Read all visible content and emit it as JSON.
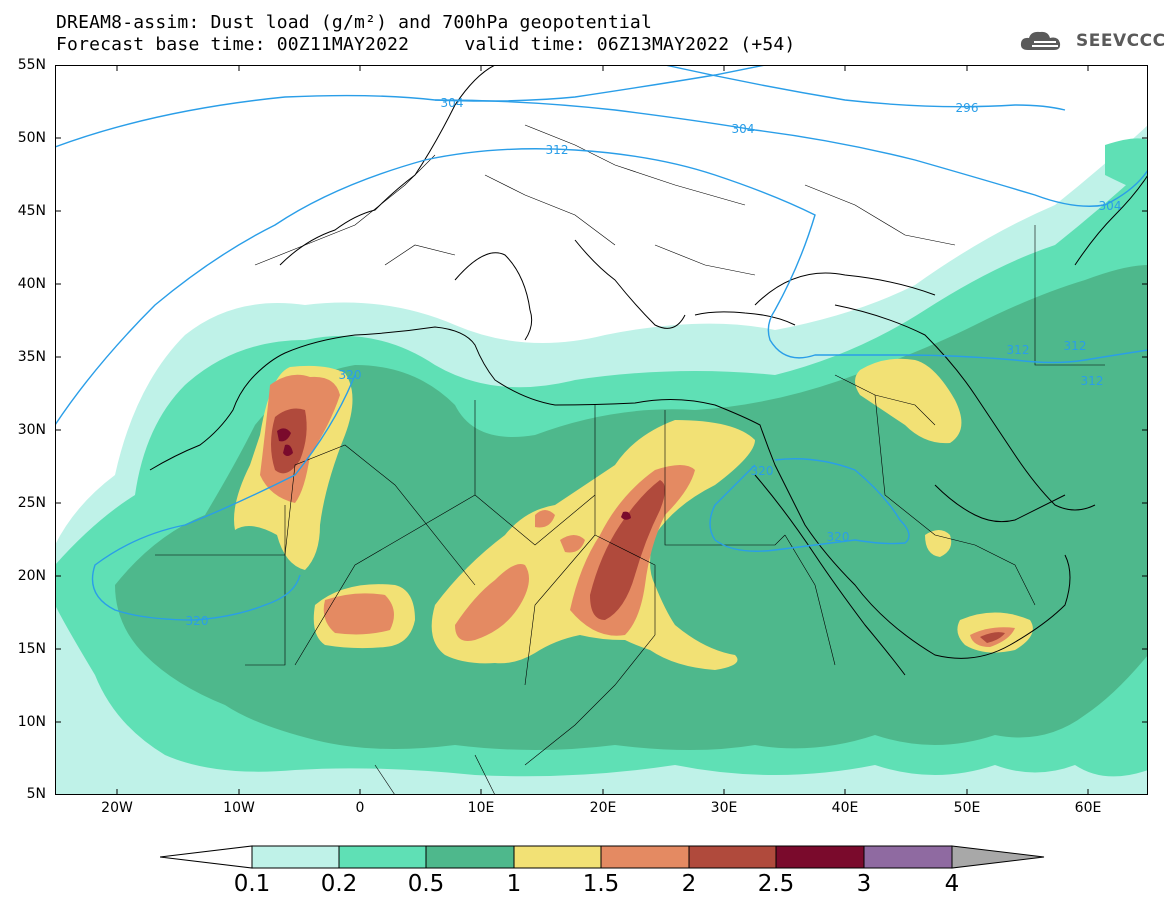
{
  "header": {
    "title_line1": "DREAM8-assim: Dust load (g/m²) and 700hPa geopotential",
    "title_line2": "Forecast base time: 00Z11MAY2022     valid time: 06Z13MAY2022 (+54)"
  },
  "logo": {
    "text": "SEEVCCC",
    "icon": "cloud-icon"
  },
  "axes": {
    "latitudes": [
      "55N",
      "50N",
      "45N",
      "40N",
      "35N",
      "30N",
      "25N",
      "20N",
      "15N",
      "10N",
      "5N"
    ],
    "longitudes": [
      "20W",
      "10W",
      "0",
      "10E",
      "20E",
      "30E",
      "40E",
      "50E",
      "60E"
    ]
  },
  "contour_labels": [
    "304",
    "296",
    "304",
    "312",
    "304",
    "320",
    "312",
    "312",
    "312",
    "320",
    "320",
    "320"
  ],
  "colorbar": {
    "labels": [
      "0.1",
      "0.2",
      "0.5",
      "1",
      "1.5",
      "2",
      "2.5",
      "3",
      "4"
    ],
    "colors": [
      "#bff2e8",
      "#5fe0b5",
      "#4eb88c",
      "#f2e175",
      "#e48a62",
      "#b04a3c",
      "#7a0a2c",
      "#8f6aa1"
    ],
    "under_color": "#ffffff",
    "over_color": "#a8a8a8"
  },
  "map_colors": {
    "ocean": "#ffffff",
    "coast": "#000000",
    "contour": "#2a9ee8"
  }
}
